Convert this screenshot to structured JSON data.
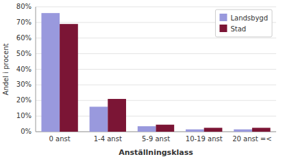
{
  "chart_data": {
    "type": "bar",
    "categories": [
      "0 anst",
      "1-4 anst",
      "5-9 anst",
      "10-19 anst",
      "20 anst =<"
    ],
    "series": [
      {
        "name": "Landsbygd",
        "color": "#9999dd",
        "values": [
          76,
          16,
          3.5,
          1.5,
          1.5
        ]
      },
      {
        "name": "Stad",
        "color": "#7b1535",
        "values": [
          69,
          21,
          4.5,
          2.5,
          2.5
        ]
      }
    ],
    "xlabel": "Anställningsklass",
    "ylabel": "Andel i procent",
    "ylim": [
      0,
      80
    ],
    "yticks": [
      {
        "value": 0,
        "label": "0%"
      },
      {
        "value": 10,
        "label": "10%"
      },
      {
        "value": 20,
        "label": "20%"
      },
      {
        "value": 30,
        "label": "30%"
      },
      {
        "value": 40,
        "label": "40%"
      },
      {
        "value": 50,
        "label": "50%"
      },
      {
        "value": 60,
        "label": "60%"
      },
      {
        "value": 70,
        "label": "70%"
      },
      {
        "value": 80,
        "label": "80%"
      }
    ],
    "grid": true,
    "legend": "upper right"
  }
}
